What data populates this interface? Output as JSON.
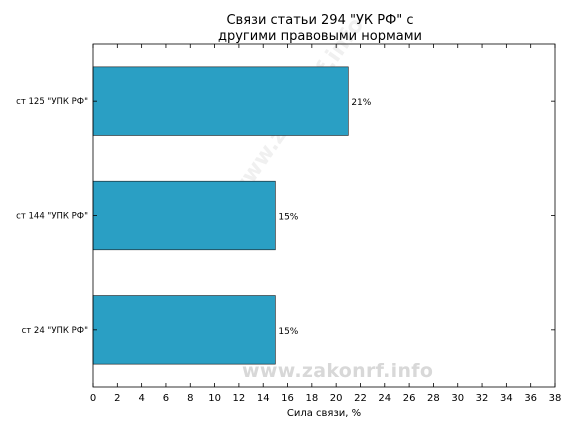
{
  "chart_data": {
    "type": "bar",
    "orientation": "horizontal",
    "title_lines": [
      "Связи статьи 294 \"УК РФ\" с",
      "другими правовыми нормами"
    ],
    "xlabel": "Сила связи, %",
    "ylabel": "",
    "categories": [
      "ст 125 \"УПК РФ\"",
      "ст 144 \"УПК РФ\"",
      "ст 24 \"УПК РФ\""
    ],
    "values": [
      21,
      15,
      15
    ],
    "value_labels": [
      "21%",
      "15%",
      "15%"
    ],
    "xlim": [
      0,
      38
    ],
    "xticks": [
      0,
      2,
      4,
      6,
      8,
      10,
      12,
      14,
      16,
      18,
      20,
      22,
      24,
      26,
      28,
      30,
      32,
      34,
      36,
      38
    ],
    "grid": false,
    "bar_color": "#2a9fc4"
  },
  "watermark": {
    "url": "www.zakonrf.info",
    "diagonal": "www.zakonrf.info"
  }
}
